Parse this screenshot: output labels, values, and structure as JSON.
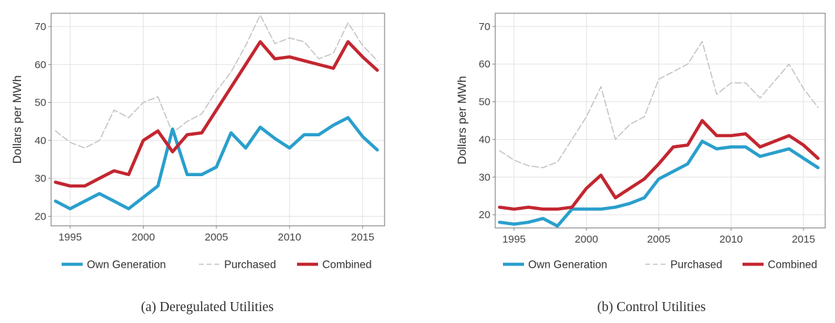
{
  "chart_data": [
    {
      "type": "line",
      "caption": "(a) Deregulated Utilities",
      "xlabel": "",
      "ylabel": "Dollars per MWh",
      "xlim": [
        1993.7,
        2016.5
      ],
      "ylim": [
        17.5,
        73.5
      ],
      "xticks": [
        1995,
        2000,
        2005,
        2010,
        2015
      ],
      "yticks": [
        20,
        30,
        40,
        50,
        60,
        70
      ],
      "grid": true,
      "legend_position": "bottom",
      "x": [
        1994,
        1995,
        1996,
        1997,
        1998,
        1999,
        2000,
        2001,
        2002,
        2003,
        2004,
        2005,
        2006,
        2007,
        2008,
        2009,
        2010,
        2011,
        2012,
        2013,
        2014,
        2015,
        2016
      ],
      "series": [
        {
          "name": "Own Generation",
          "color": "#2a9fcc",
          "style": "solid-thick",
          "values": [
            24,
            22,
            24,
            26,
            24,
            22,
            25,
            28,
            43,
            31,
            31,
            33,
            42,
            38,
            43.5,
            40.5,
            38,
            41.5,
            41.5,
            44,
            46,
            41,
            37.5
          ]
        },
        {
          "name": "Purchased",
          "color": "#c4c4c4",
          "style": "dashed-thin",
          "values": [
            42.5,
            39.5,
            38,
            40,
            48,
            46,
            50,
            51.5,
            42,
            45,
            47,
            53,
            58,
            65,
            73,
            65.5,
            67,
            66,
            61.5,
            63,
            71,
            65,
            61
          ]
        },
        {
          "name": "Combined",
          "color": "#c32630",
          "style": "solid-thick",
          "values": [
            29,
            28,
            28,
            30,
            32,
            31,
            40,
            42.5,
            37,
            41.5,
            42,
            48,
            54,
            60,
            66,
            61.5,
            62,
            61,
            60,
            59,
            66,
            62,
            58.5
          ]
        }
      ]
    },
    {
      "type": "line",
      "caption": "(b) Control Utilities",
      "xlabel": "",
      "ylabel": "Dollars per MWh",
      "xlim": [
        1993.7,
        2016.5
      ],
      "ylim": [
        16.5,
        73.5
      ],
      "xticks": [
        1995,
        2000,
        2005,
        2010,
        2015
      ],
      "yticks": [
        20,
        30,
        40,
        50,
        60,
        70
      ],
      "grid": true,
      "legend_position": "bottom",
      "x": [
        1994,
        1995,
        1996,
        1997,
        1998,
        1999,
        2000,
        2001,
        2002,
        2003,
        2004,
        2005,
        2006,
        2007,
        2008,
        2009,
        2010,
        2011,
        2012,
        2013,
        2014,
        2015,
        2016
      ],
      "series": [
        {
          "name": "Own Generation",
          "color": "#2a9fcc",
          "style": "solid-thick",
          "values": [
            18,
            17.5,
            18,
            19,
            17,
            21.5,
            21.5,
            21.5,
            22,
            23,
            24.5,
            29.5,
            31.5,
            33.5,
            39.5,
            37.5,
            38,
            38,
            35.5,
            36.5,
            37.5,
            35,
            32.5
          ]
        },
        {
          "name": "Purchased",
          "color": "#c4c4c4",
          "style": "dashed-thin",
          "values": [
            37,
            34.5,
            33,
            32.5,
            34,
            40,
            46,
            54,
            40,
            44,
            46,
            56,
            58,
            60,
            66,
            52,
            55,
            55,
            51,
            55.5,
            60,
            53.5,
            48.5
          ]
        },
        {
          "name": "Combined",
          "color": "#c32630",
          "style": "solid-thick",
          "values": [
            22,
            21.5,
            22,
            21.5,
            21.5,
            22,
            27,
            30.5,
            24.5,
            27,
            29.5,
            33.5,
            38,
            38.5,
            45,
            41,
            41,
            41.5,
            38,
            39.5,
            41,
            38.5,
            35
          ]
        }
      ]
    }
  ]
}
